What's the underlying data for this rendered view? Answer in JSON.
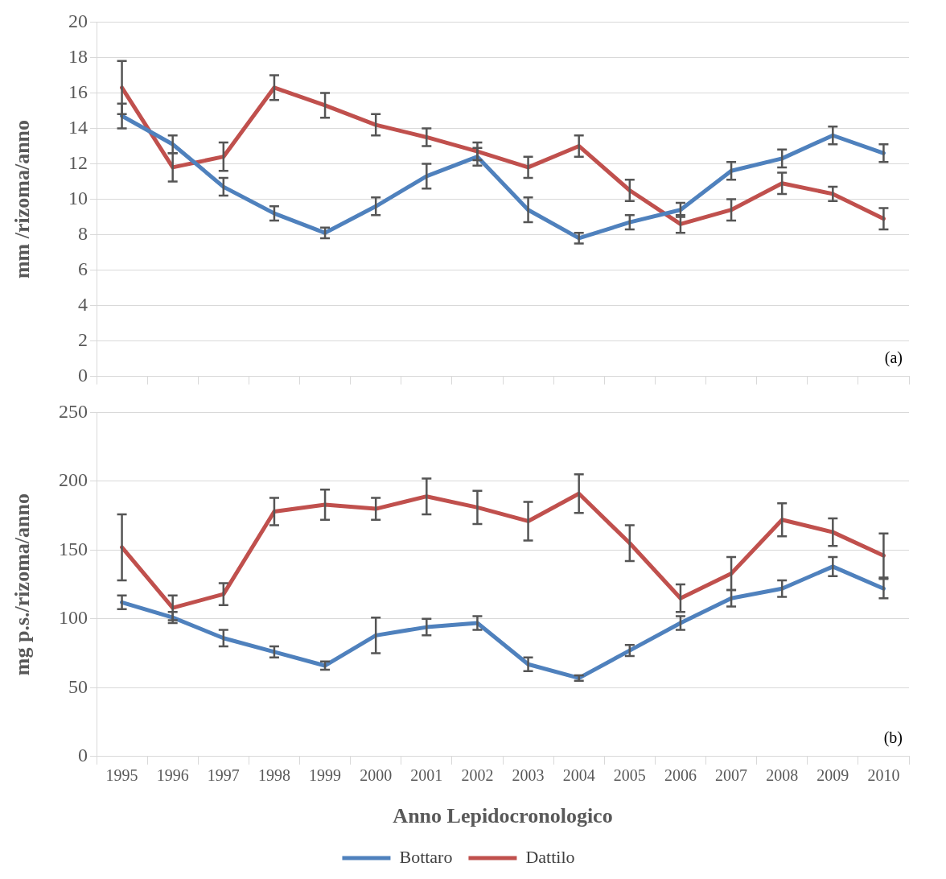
{
  "chart_data": [
    {
      "type": "line",
      "ylabel": "mm /rizoma/anno",
      "categories": [
        "1995",
        "1996",
        "1997",
        "1998",
        "1999",
        "2000",
        "2001",
        "2002",
        "2003",
        "2004",
        "2005",
        "2006",
        "2007",
        "2008",
        "2009",
        "2010"
      ],
      "ylim": [
        0,
        20
      ],
      "yticks": [
        0,
        2,
        4,
        6,
        8,
        10,
        12,
        14,
        16,
        18,
        20
      ],
      "grid": "y",
      "legend": false,
      "tick_labels": "y",
      "annotations": [
        "(a)"
      ],
      "series": [
        {
          "color": "#4f81bd",
          "values": [
            14.7,
            13.1,
            10.7,
            9.2,
            8.1,
            9.6,
            11.3,
            12.4,
            9.4,
            7.8,
            8.7,
            9.4,
            11.6,
            12.3,
            13.6,
            12.6
          ],
          "errors": [
            0.7,
            0.5,
            0.5,
            0.4,
            0.3,
            0.5,
            0.7,
            0.5,
            0.7,
            0.3,
            0.4,
            0.4,
            0.5,
            0.5,
            0.5,
            0.5
          ]
        },
        {
          "color": "#c0504d",
          "values": [
            16.3,
            11.8,
            12.4,
            16.3,
            15.3,
            14.2,
            13.5,
            12.7,
            11.8,
            13.0,
            10.5,
            8.6,
            9.4,
            10.9,
            10.3,
            8.9
          ],
          "errors": [
            1.5,
            0.8,
            0.8,
            0.7,
            0.7,
            0.6,
            0.5,
            0.5,
            0.6,
            0.6,
            0.6,
            0.5,
            0.6,
            0.6,
            0.4,
            0.6
          ]
        }
      ]
    },
    {
      "type": "line",
      "ylabel": "mg p.s./rizoma/anno",
      "xlabel": "Anno Lepidocronologico",
      "categories": [
        "1995",
        "1996",
        "1997",
        "1998",
        "1999",
        "2000",
        "2001",
        "2002",
        "2003",
        "2004",
        "2005",
        "2006",
        "2007",
        "2008",
        "2009",
        "2010"
      ],
      "ylim": [
        0,
        250
      ],
      "yticks": [
        0,
        50,
        100,
        150,
        200,
        250
      ],
      "grid": "y",
      "legend": "bottom",
      "annotations": [
        "(b)"
      ],
      "series": [
        {
          "name": "Bottaro",
          "color": "#4f81bd",
          "values": [
            112,
            101,
            86,
            76,
            66,
            88,
            94,
            97,
            67,
            57,
            77,
            97,
            115,
            122,
            138,
            122
          ],
          "errors": [
            5,
            4,
            6,
            4,
            3,
            13,
            6,
            5,
            5,
            2,
            4,
            5,
            6,
            6,
            7,
            7
          ]
        },
        {
          "name": "Dattilo",
          "color": "#c0504d",
          "values": [
            152,
            108,
            118,
            178,
            183,
            180,
            189,
            181,
            171,
            191,
            155,
            115,
            133,
            172,
            163,
            146
          ],
          "errors": [
            24,
            9,
            8,
            10,
            11,
            8,
            13,
            12,
            14,
            14,
            13,
            10,
            12,
            12,
            10,
            16
          ]
        }
      ]
    }
  ]
}
